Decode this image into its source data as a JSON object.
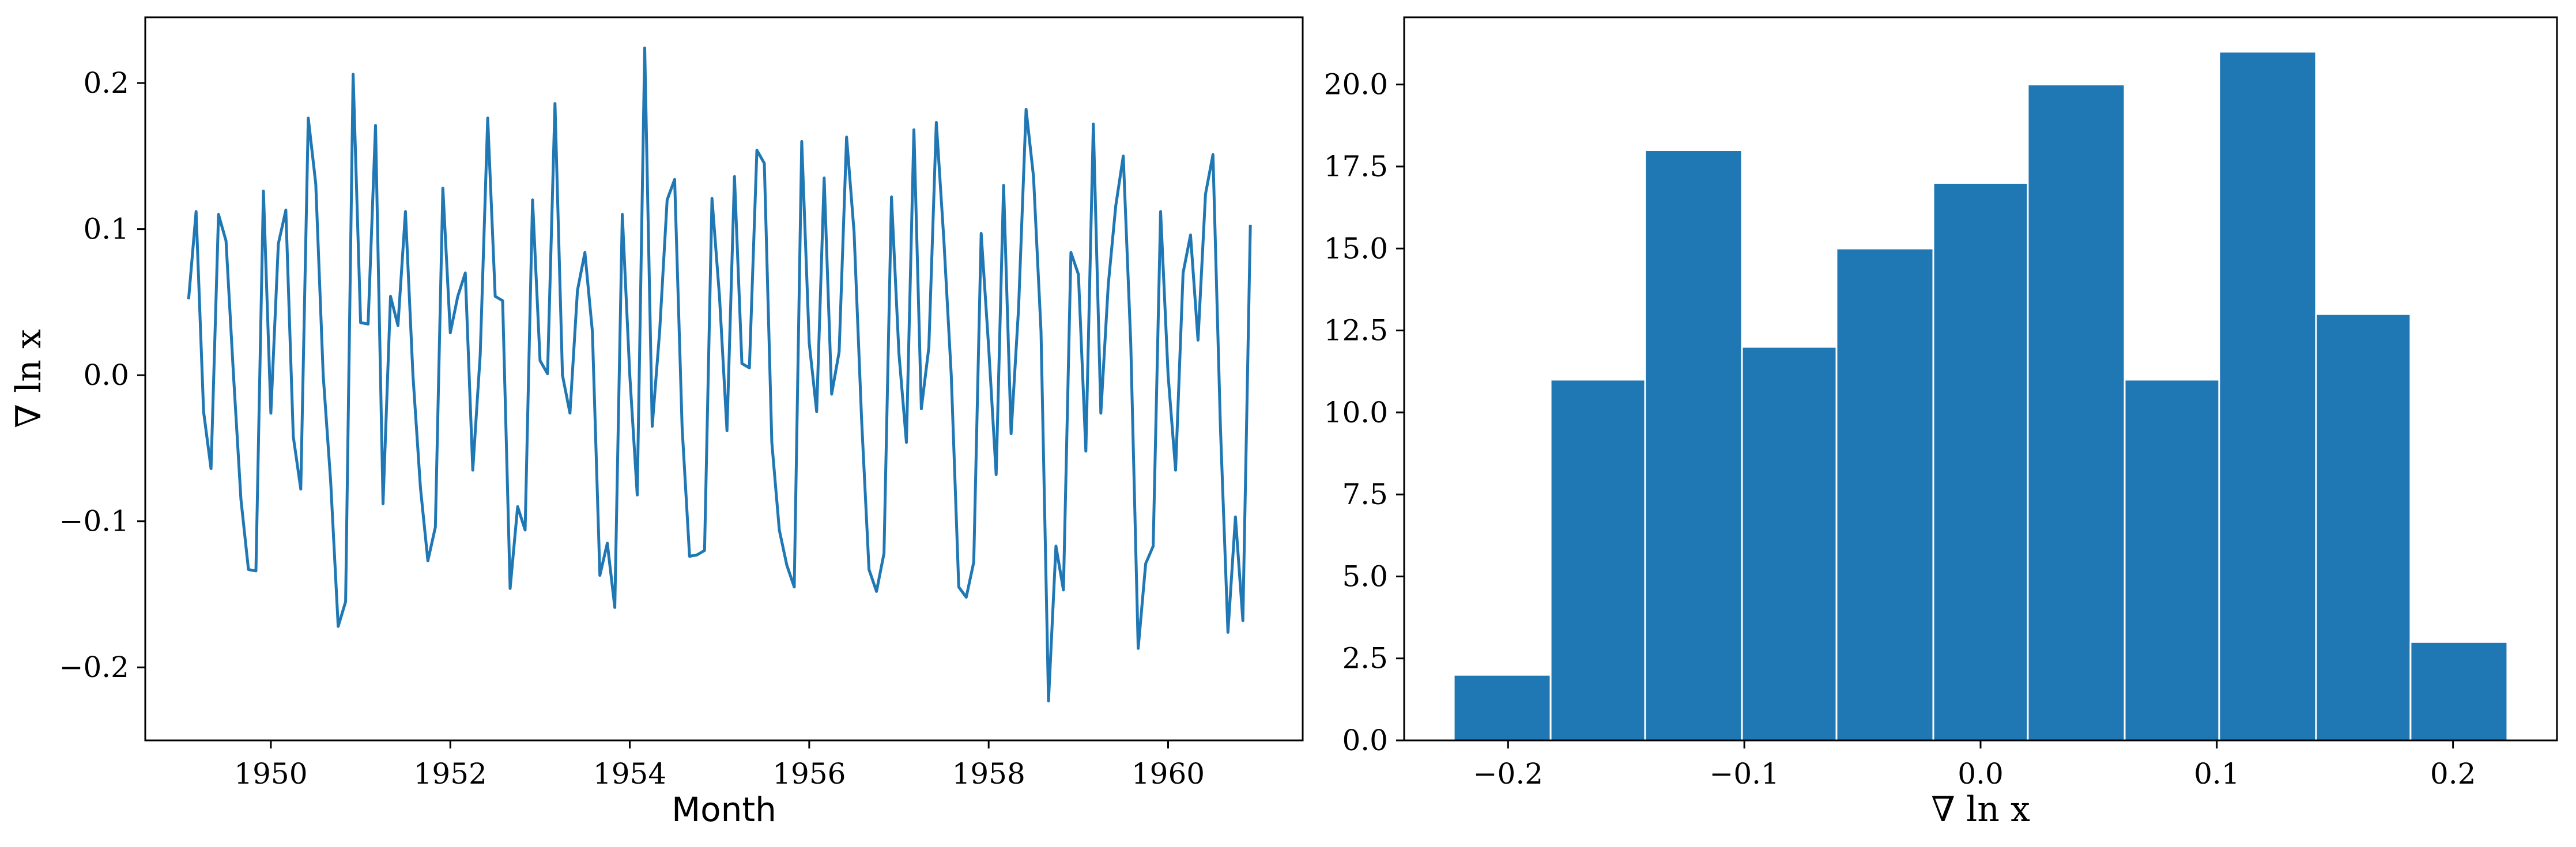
{
  "colors": {
    "series": "#1f77b4",
    "axes": "#000000",
    "background": "#ffffff",
    "bar_edge": "#ffffff"
  },
  "chart_data": [
    {
      "type": "line",
      "title": "",
      "xlabel": "Month",
      "ylabel": "∇ ln x",
      "xlim": [
        1948.6,
        1961.5
      ],
      "ylim": [
        -0.25,
        0.245
      ],
      "xticks": [
        1950,
        1952,
        1954,
        1956,
        1958,
        1960
      ],
      "yticks": [
        -0.2,
        -0.1,
        0.0,
        0.1,
        0.2
      ],
      "xtick_labels": [
        "1950",
        "1952",
        "1954",
        "1956",
        "1958",
        "1960"
      ],
      "ytick_labels": [
        "−0.2",
        "−0.1",
        "0.0",
        "0.1",
        "0.2"
      ],
      "grid": false,
      "x_start": "1949-02",
      "x_step": "1 month",
      "values": [
        0.052,
        0.112,
        -0.025,
        -0.064,
        0.11,
        0.092,
        0.0,
        -0.085,
        -0.133,
        -0.134,
        0.126,
        -0.026,
        0.09,
        0.113,
        -0.042,
        -0.078,
        0.176,
        0.131,
        0.0,
        -0.073,
        -0.172,
        -0.155,
        0.206,
        0.036,
        0.035,
        0.171,
        -0.088,
        0.054,
        0.034,
        0.112,
        0.0,
        -0.077,
        -0.127,
        -0.104,
        0.128,
        0.029,
        0.054,
        0.07,
        -0.065,
        0.014,
        0.176,
        0.054,
        0.051,
        -0.146,
        -0.09,
        -0.106,
        0.12,
        0.01,
        0.001,
        0.186,
        0.0,
        -0.026,
        0.058,
        0.084,
        0.03,
        -0.137,
        -0.115,
        -0.159,
        0.11,
        0.0,
        -0.082,
        0.224,
        -0.035,
        0.03,
        0.12,
        0.134,
        -0.036,
        -0.124,
        -0.123,
        -0.12,
        0.121,
        0.054,
        -0.038,
        0.136,
        0.008,
        0.005,
        0.154,
        0.145,
        -0.046,
        -0.106,
        -0.13,
        -0.145,
        0.16,
        0.022,
        -0.025,
        0.135,
        -0.013,
        0.016,
        0.163,
        0.098,
        -0.03,
        -0.133,
        -0.148,
        -0.122,
        0.122,
        0.015,
        -0.046,
        0.168,
        -0.023,
        0.019,
        0.173,
        0.093,
        0.0,
        -0.145,
        -0.152,
        -0.128,
        0.097,
        0.019,
        -0.068,
        0.13,
        -0.04,
        0.046,
        0.182,
        0.136,
        0.03,
        -0.223,
        -0.117,
        -0.147,
        0.084,
        0.069,
        -0.052,
        0.172,
        -0.026,
        0.062,
        0.116,
        0.15,
        0.022,
        -0.187,
        -0.129,
        -0.117,
        0.112,
        0.0,
        -0.065,
        0.07,
        0.096,
        0.024,
        0.124,
        0.151,
        -0.036,
        -0.176,
        -0.097,
        -0.168,
        0.103
      ]
    },
    {
      "type": "bar",
      "title": "",
      "xlabel": "∇ ln x",
      "ylabel": "",
      "xlim": [
        -0.244,
        0.244
      ],
      "ylim": [
        0,
        22.05
      ],
      "xticks": [
        -0.2,
        -0.1,
        0.0,
        0.1,
        0.2
      ],
      "yticks": [
        0,
        2.5,
        5,
        7.5,
        10,
        12.5,
        15,
        17.5,
        20
      ],
      "xtick_labels": [
        "−0.2",
        "−0.1",
        "0.0",
        "0.1",
        "0.2"
      ],
      "ytick_labels": [
        "0.0",
        "2.5",
        "5.0",
        "7.5",
        "10.0",
        "12.5",
        "15.0",
        "17.5",
        "20.0"
      ],
      "grid": false,
      "bin_edges": [
        -0.223,
        -0.182,
        -0.142,
        -0.101,
        -0.061,
        -0.02,
        0.02,
        0.061,
        0.101,
        0.142,
        0.182,
        0.223
      ],
      "values": [
        2,
        11,
        18,
        12,
        15,
        17,
        20,
        11,
        21,
        13,
        3
      ]
    }
  ]
}
